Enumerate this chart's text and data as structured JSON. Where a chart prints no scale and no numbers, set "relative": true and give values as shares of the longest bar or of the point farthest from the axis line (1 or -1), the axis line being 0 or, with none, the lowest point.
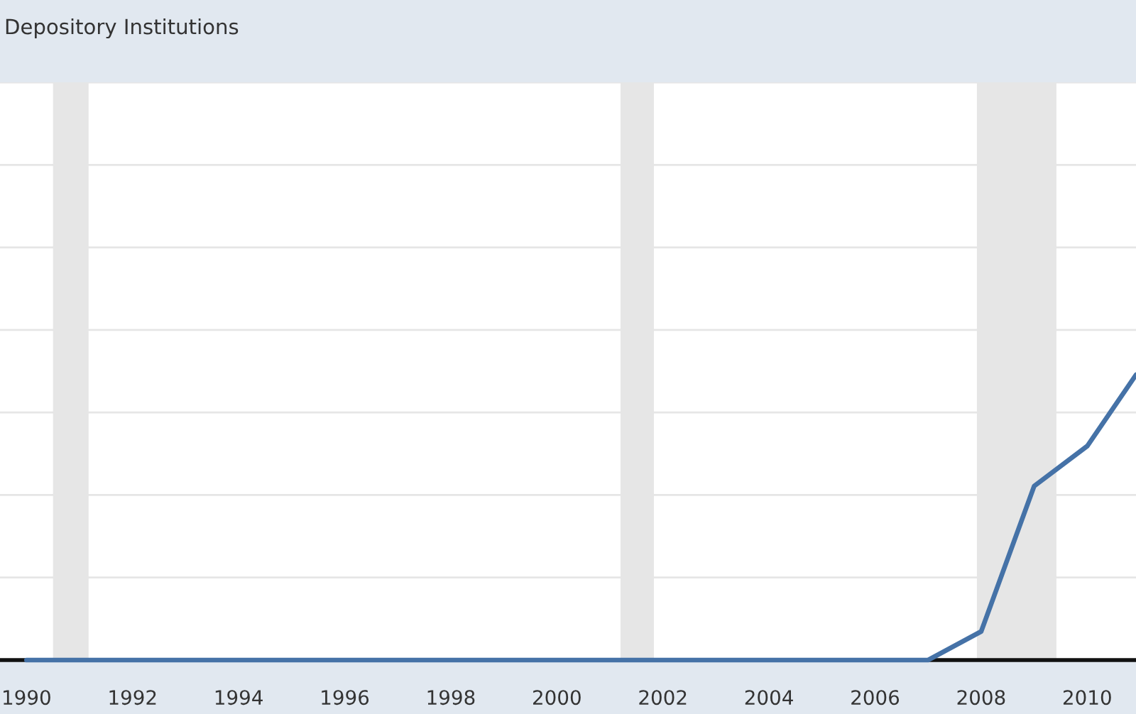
{
  "chart_data": {
    "type": "line",
    "title": "Depository Institutions",
    "x": [
      1990,
      1991,
      1992,
      1993,
      1994,
      1995,
      1996,
      1997,
      1998,
      1999,
      2000,
      2001,
      2002,
      2003,
      2004,
      2005,
      2006,
      2007,
      2008,
      2009,
      2010,
      2010.92
    ],
    "series": [
      {
        "color": "#4572a7",
        "values": [
          0,
          0,
          0,
          0,
          0,
          0,
          0,
          0,
          0,
          0,
          0,
          0,
          0,
          0,
          0,
          0,
          0,
          0,
          0.1,
          0.61,
          0.75,
          1
        ]
      }
    ],
    "relative": true,
    "xlim": [
      1989.5,
      2010.92
    ],
    "xticks": [
      1990,
      1992,
      1994,
      1996,
      1998,
      2000,
      2002,
      2004,
      2006,
      2008,
      2010
    ],
    "grid": "y",
    "bands": [
      {
        "axis": "x",
        "from": 1990.5,
        "to": 1991.17,
        "color": "#e6e6e6"
      },
      {
        "axis": "x",
        "from": 2001.2,
        "to": 2001.83,
        "color": "#e6e6e6"
      },
      {
        "axis": "x",
        "from": 2007.92,
        "to": 2009.42,
        "color": "#e6e6e6"
      }
    ]
  }
}
